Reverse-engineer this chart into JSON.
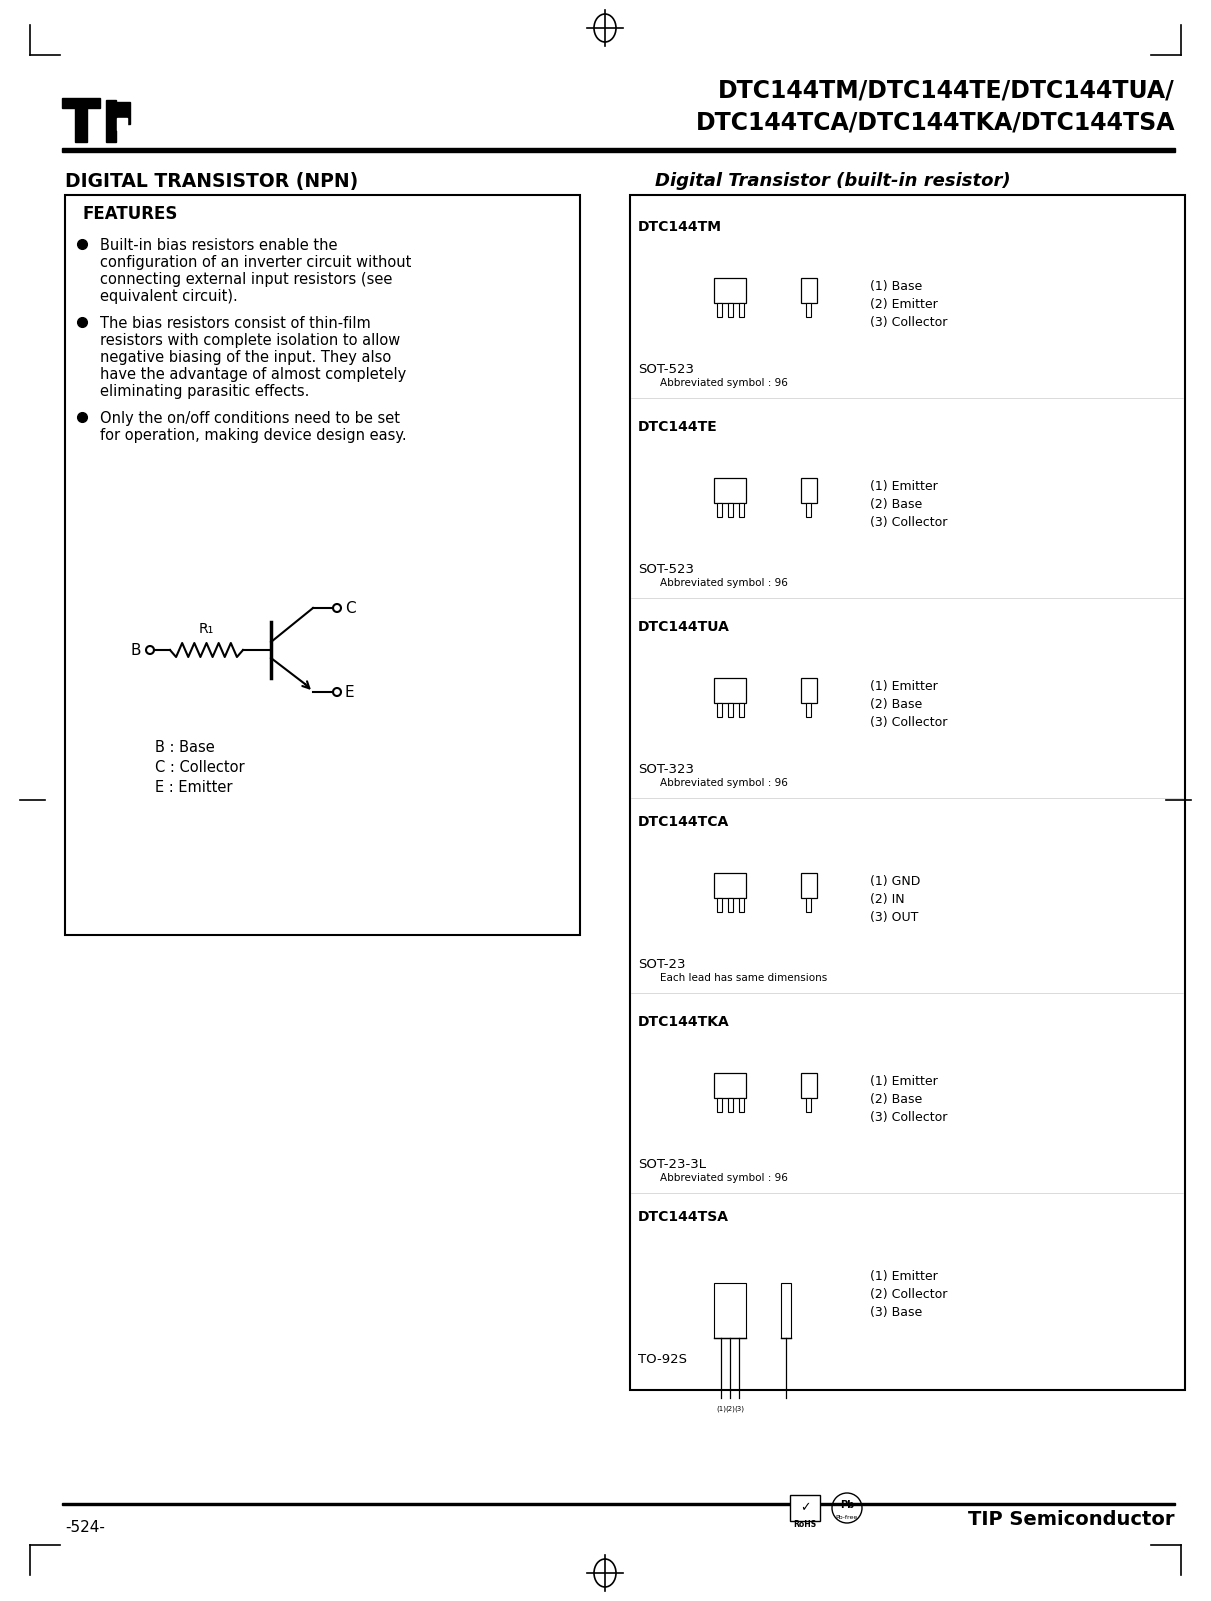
{
  "page_title_line1": "DTC144TM/DTC144TE/DTC144TUA/",
  "page_title_line2": "DTC144TCA/DTC144TKA/DTC144TSA",
  "left_title": "DIGITAL TRANSISTOR (NPN)",
  "right_title": "Digital Transistor (built-in resistor)",
  "features_title": "FEATURES",
  "features": [
    "Built-in bias resistors enable the configuration of an inverter circuit without connecting external input resistors (see equivalent circuit).",
    "The bias resistors consist of thin-film resistors with complete isolation to allow negative biasing of the input. They also have the advantage of almost completely eliminating parasitic effects.",
    "Only the on/off conditions need to be set for operation, making device design easy."
  ],
  "legend": [
    "B : Base",
    "C : Collector",
    "E : Emitter"
  ],
  "footer_left": "-524-",
  "footer_right": "TIP Semiconductor",
  "bg_color": "#ffffff"
}
